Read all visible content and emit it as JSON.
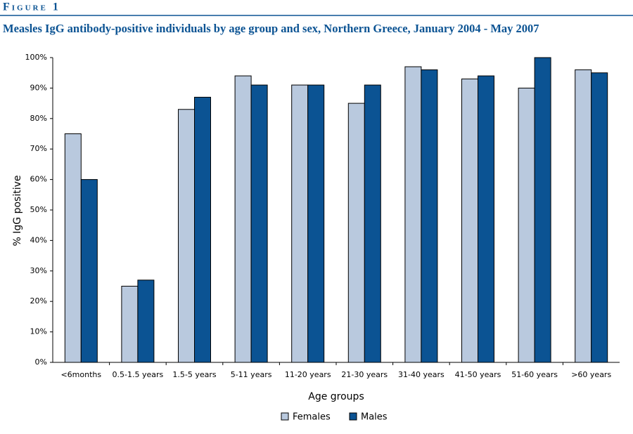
{
  "figure_label": "Figure 1",
  "chart_data": {
    "type": "bar",
    "title": "Measles IgG antibody-positive individuals by age group and sex, Northern Greece, January 2004 - May 2007",
    "x_label": "Age groups",
    "y_label": "% IgG positive",
    "categories": [
      "<6months",
      "0.5-1.5 years",
      "1.5-5 years",
      "5-11 years",
      "11-20 years",
      "21-30 years",
      "31-40 years",
      "41-50 years",
      "51-60 years",
      ">60 years"
    ],
    "series": [
      {
        "name": "Females",
        "color": "#b9c9de",
        "values": [
          75,
          25,
          83,
          94,
          91,
          85,
          97,
          93,
          90,
          96
        ]
      },
      {
        "name": "Males",
        "color": "#0b5393",
        "values": [
          60,
          27,
          87,
          91,
          91,
          91,
          96,
          94,
          100,
          95
        ]
      }
    ],
    "ylim": [
      0,
      100
    ],
    "yticks": [
      {
        "value": 0,
        "label": "0%"
      },
      {
        "value": 10,
        "label": "10%"
      },
      {
        "value": 20,
        "label": "20%"
      },
      {
        "value": 30,
        "label": "30%"
      },
      {
        "value": 40,
        "label": "40%"
      },
      {
        "value": 50,
        "label": "50%"
      },
      {
        "value": 60,
        "label": "60%"
      },
      {
        "value": 70,
        "label": "70%"
      },
      {
        "value": 80,
        "label": "80%"
      },
      {
        "value": 90,
        "label": "90%"
      },
      {
        "value": 100,
        "label": "100%"
      }
    ],
    "grid": false,
    "legend": "bottom"
  }
}
